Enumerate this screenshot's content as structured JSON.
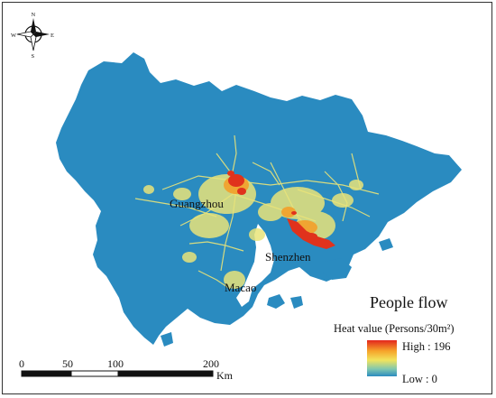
{
  "map": {
    "title": "People flow",
    "cities": [
      {
        "name": "Guangzhou"
      },
      {
        "name": "Shenzhen"
      },
      {
        "name": "Macao"
      }
    ],
    "colors": {
      "land": "#2a8bc0",
      "water": "#ffffff",
      "road_low": "#e9e47a",
      "road_high": "#e0321c",
      "border": "#333333"
    }
  },
  "legend": {
    "title": "People flow",
    "subtitle": "Heat value (Persons/30m²)",
    "high_label": "High : 196",
    "low_label": "Low : 0",
    "gradient": [
      "#e3261d",
      "#f6a52a",
      "#f2e35c",
      "#7fc7b0",
      "#2a8bc0"
    ]
  },
  "scale_bar": {
    "ticks": [
      "0",
      "50",
      "100",
      "200"
    ],
    "unit": "Km"
  },
  "compass": {
    "north": "N",
    "south": "S",
    "east": "E",
    "west": "W"
  }
}
